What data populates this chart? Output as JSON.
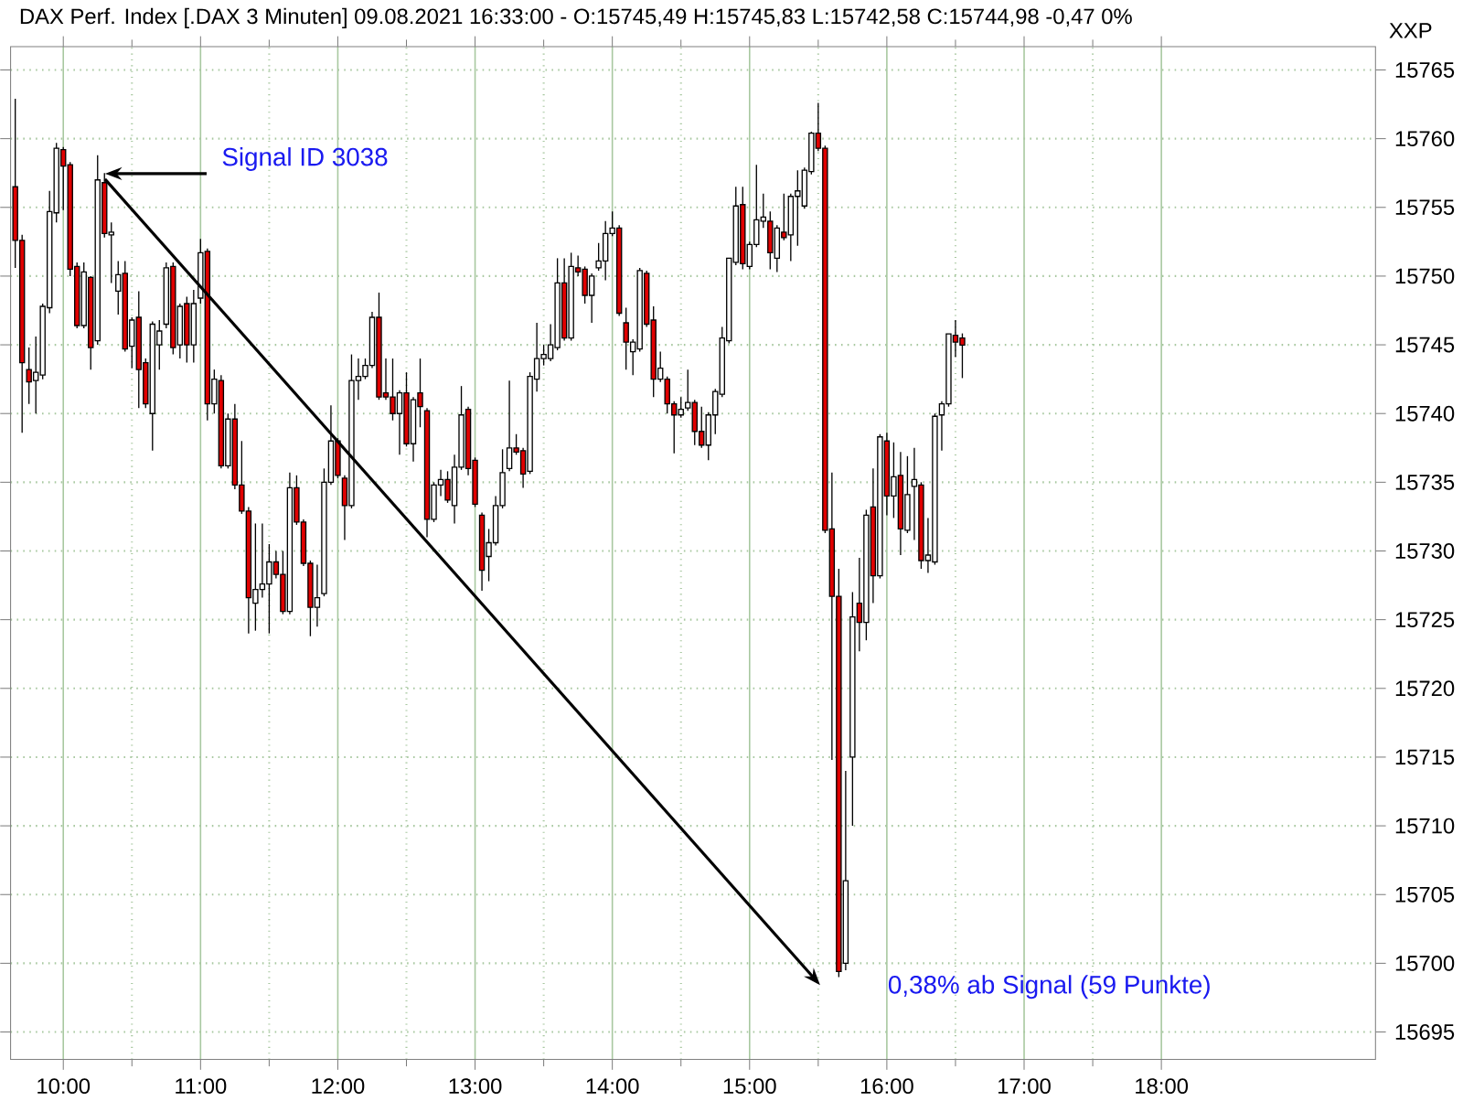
{
  "chart_data": {
    "type": "candlestick",
    "title": "DAX Perf. Index [.DAX  3 Minuten] 09.08.2021 16:33:00 - O:15745,49 H:15745,83 L:15742,58 C:15744,98 -0,47 0%",
    "ylabel": "XXP",
    "x": [
      9.65,
      9.7,
      9.75,
      9.8,
      9.85,
      9.9,
      9.95,
      10,
      10.05,
      10.1,
      10.15,
      10.2,
      10.25,
      10.3,
      10.35,
      10.4,
      10.45,
      10.5,
      10.55,
      10.6,
      10.65,
      10.7,
      10.75,
      10.8,
      10.85,
      10.9,
      10.95,
      11,
      11.05,
      11.1,
      11.15,
      11.2,
      11.25,
      11.3,
      11.35,
      11.4,
      11.45,
      11.5,
      11.55,
      11.6,
      11.65,
      11.7,
      11.75,
      11.8,
      11.85,
      11.9,
      11.95,
      12,
      12.05,
      12.1,
      12.15,
      12.2,
      12.25,
      12.3,
      12.35,
      12.4,
      12.45,
      12.5,
      12.55,
      12.6,
      12.65,
      12.7,
      12.75,
      12.8,
      12.85,
      12.9,
      12.95,
      13,
      13.05,
      13.1,
      13.15,
      13.2,
      13.25,
      13.3,
      13.35,
      13.4,
      13.45,
      13.5,
      13.55,
      13.6,
      13.65,
      13.7,
      13.75,
      13.8,
      13.85,
      13.9,
      13.95,
      14,
      14.05,
      14.1,
      14.15,
      14.2,
      14.25,
      14.3,
      14.35,
      14.4,
      14.45,
      14.5,
      14.55,
      14.6,
      14.65,
      14.7,
      14.75,
      14.8,
      14.85,
      14.9,
      14.95,
      15,
      15.05,
      15.1,
      15.15,
      15.2,
      15.25,
      15.3,
      15.35,
      15.4,
      15.45,
      15.5,
      15.55,
      15.6,
      15.65,
      15.7,
      15.75,
      15.8,
      15.85,
      15.9,
      15.95,
      16,
      16.05,
      16.1,
      16.15,
      16.2,
      16.25,
      16.3,
      16.35,
      16.4,
      16.45,
      16.5,
      16.55
    ],
    "ohlc": [
      [
        15756.5,
        15762.9,
        15750.6,
        15752.6
      ],
      [
        15752.6,
        15753,
        15738.6,
        15743.7
      ],
      [
        15743.2,
        15744.8,
        15740.7,
        15742.3
      ],
      [
        15742.4,
        15745.6,
        15740,
        15743
      ],
      [
        15742.8,
        15748,
        15742.5,
        15747.8
      ],
      [
        15747.7,
        15756.2,
        15747.3,
        15754.7
      ],
      [
        15754.6,
        15759.7,
        15753.9,
        15759.3
      ],
      [
        15759.2,
        15759.4,
        15754.8,
        15758
      ],
      [
        15758.1,
        15758.3,
        15750,
        15750.5
      ],
      [
        15750.7,
        15751,
        15746.2,
        15746.4
      ],
      [
        15746.4,
        15751,
        15746.2,
        15750.3
      ],
      [
        15749.9,
        15750,
        15743.2,
        15744.8
      ],
      [
        15745.3,
        15758.8,
        15745,
        15757
      ],
      [
        15756.8,
        15757.5,
        15752.8,
        15753.1
      ],
      [
        15753,
        15753.9,
        15749.5,
        15753.2
      ],
      [
        15748.9,
        15751.1,
        15747.2,
        15750.1
      ],
      [
        15750.2,
        15751.1,
        15744.5,
        15744.7
      ],
      [
        15744.9,
        15747,
        15743.3,
        15746.8
      ],
      [
        15747,
        15748.9,
        15740.4,
        15743.2
      ],
      [
        15743.7,
        15744,
        15740.4,
        15740.7
      ],
      [
        15740,
        15746.7,
        15737.3,
        15746.5
      ],
      [
        15745,
        15746.8,
        15743.2,
        15746
      ],
      [
        15746.5,
        15751,
        15746.2,
        15750.6
      ],
      [
        15750.7,
        15751,
        15744.3,
        15744.8
      ],
      [
        15745,
        15748,
        15744,
        15747.8
      ],
      [
        15748,
        15748.5,
        15743.7,
        15745
      ],
      [
        15745,
        15749,
        15743.7,
        15748
      ],
      [
        15748.4,
        15752.7,
        15748,
        15751.7
      ],
      [
        15751.8,
        15752,
        15739.5,
        15740.7
      ],
      [
        15740.7,
        15743.2,
        15740,
        15742.5
      ],
      [
        15742.4,
        15742.8,
        15736,
        15736.2
      ],
      [
        15736.2,
        15740,
        15736,
        15739.6
      ],
      [
        15739.6,
        15740.7,
        15734.5,
        15734.8
      ],
      [
        15734.8,
        15738,
        15732.7,
        15732.9
      ],
      [
        15732.9,
        15733.2,
        15724,
        15726.6
      ],
      [
        15726.2,
        15732,
        15724.2,
        15727.2
      ],
      [
        15727.2,
        15732,
        15726.6,
        15727.6
      ],
      [
        15727.6,
        15730.5,
        15724,
        15729.2
      ],
      [
        15729.2,
        15730,
        15728,
        15728.3
      ],
      [
        15728.3,
        15730,
        15725.4,
        15725.6
      ],
      [
        15725.6,
        15735.7,
        15725.4,
        15734.6
      ],
      [
        15734.6,
        15735.5,
        15731.9,
        15732.1
      ],
      [
        15732.1,
        15732.3,
        15728.9,
        15729.1
      ],
      [
        15729.1,
        15729.3,
        15723.8,
        15725.9
      ],
      [
        15725.9,
        15729,
        15724.5,
        15726.6
      ],
      [
        15726.9,
        15736,
        15726.7,
        15735
      ],
      [
        15735,
        15740.6,
        15734.8,
        15738
      ],
      [
        15738,
        15738.2,
        15735.3,
        15735.5
      ],
      [
        15735.3,
        15735.5,
        15730.8,
        15733.3
      ],
      [
        15733.3,
        15744.3,
        15733.1,
        15742.4
      ],
      [
        15742.4,
        15744,
        15741,
        15742.7
      ],
      [
        15742.7,
        15744,
        15742.5,
        15743.5
      ],
      [
        15743.5,
        15747.4,
        15743.3,
        15747
      ],
      [
        15747,
        15748.8,
        15741,
        15741.2
      ],
      [
        15741.5,
        15744,
        15741,
        15741.2
      ],
      [
        15741.2,
        15744,
        15739.5,
        15740
      ],
      [
        15740,
        15741.7,
        15737,
        15741.5
      ],
      [
        15741.5,
        15743,
        15737.6,
        15737.8
      ],
      [
        15737.8,
        15741.2,
        15736.5,
        15741
      ],
      [
        15741.5,
        15744,
        15739,
        15740.5
      ],
      [
        15740.2,
        15740.4,
        15731,
        15732.3
      ],
      [
        15732.3,
        15735,
        15732.1,
        15734.8
      ],
      [
        15734.8,
        15735.9,
        15734,
        15735.2
      ],
      [
        15735.2,
        15735.8,
        15733.5,
        15733.7
      ],
      [
        15733.3,
        15737,
        15732,
        15736.1
      ],
      [
        15736.1,
        15742,
        15735.9,
        15739.9
      ],
      [
        15740.3,
        15740.5,
        15735.5,
        15736
      ],
      [
        15736.6,
        15736.8,
        15733.2,
        15733.4
      ],
      [
        15732.6,
        15732.8,
        15727.1,
        15728.6
      ],
      [
        15729.6,
        15731.6,
        15727.8,
        15730.6
      ],
      [
        15730.6,
        15734,
        15730.4,
        15733.3
      ],
      [
        15733.3,
        15737.4,
        15733.1,
        15735.7
      ],
      [
        15736,
        15742.4,
        15735.8,
        15737.5
      ],
      [
        15737.5,
        15738.5,
        15737,
        15737.2
      ],
      [
        15737.3,
        15737.5,
        15734.6,
        15735.6
      ],
      [
        15735.8,
        15743,
        15735.6,
        15742.7
      ],
      [
        15742.5,
        15746.6,
        15741.6,
        15744
      ],
      [
        15744,
        15745,
        15743.5,
        15744.3
      ],
      [
        15744,
        15746.5,
        15743.8,
        15745
      ],
      [
        15744.8,
        15751.3,
        15744.6,
        15749.5
      ],
      [
        15749.5,
        15751.3,
        15745.3,
        15745.5
      ],
      [
        15745.5,
        15751.7,
        15745.3,
        15750.7
      ],
      [
        15750.6,
        15751.5,
        15750,
        15750.3
      ],
      [
        15750.5,
        15750.7,
        15748,
        15748.6
      ],
      [
        15748.6,
        15750.2,
        15746.6,
        15750
      ],
      [
        15750.6,
        15752.4,
        15750.4,
        15751.1
      ],
      [
        15751.1,
        15754,
        15749.7,
        15753.1
      ],
      [
        15753.1,
        15754.7,
        15752.9,
        15753.5
      ],
      [
        15753.5,
        15753.7,
        15747.1,
        15747.3
      ],
      [
        15746.6,
        15747.7,
        15743.2,
        15745.2
      ],
      [
        15744.5,
        15745.4,
        15742.8,
        15745.2
      ],
      [
        15744.7,
        15750.6,
        15744.5,
        15750.4
      ],
      [
        15750.2,
        15750.4,
        15746.3,
        15746.5
      ],
      [
        15746.8,
        15747.8,
        15741.2,
        15742.5
      ],
      [
        15742.5,
        15744.5,
        15742.3,
        15743.3
      ],
      [
        15742.5,
        15742.7,
        15740,
        15740.7
      ],
      [
        15740.7,
        15740.9,
        15737.1,
        15739.9
      ],
      [
        15739.9,
        15741.2,
        15739.7,
        15740.3
      ],
      [
        15740.4,
        15743.2,
        15740.2,
        15740.8
      ],
      [
        15740.8,
        15741,
        15737.7,
        15738.7
      ],
      [
        15738.7,
        15740.5,
        15737.5,
        15737.7
      ],
      [
        15737.7,
        15740.1,
        15736.6,
        15739.9
      ],
      [
        15739.9,
        15741.8,
        15738.5,
        15741.6
      ],
      [
        15741.4,
        15746.3,
        15741.2,
        15745.5
      ],
      [
        15745.3,
        15751.3,
        15745.1,
        15751.3
      ],
      [
        15751,
        15756.5,
        15750.8,
        15755.1
      ],
      [
        15755.2,
        15756.5,
        15750.5,
        15750.9
      ],
      [
        15750.7,
        15752.5,
        15750.5,
        15752.3
      ],
      [
        15752.3,
        15758.1,
        15752.1,
        15754.1
      ],
      [
        15754,
        15756,
        15753.5,
        15754.3
      ],
      [
        15754,
        15754.7,
        15750.5,
        15751.7
      ],
      [
        15751.3,
        15753.7,
        15750.3,
        15753.5
      ],
      [
        15753.2,
        15756,
        15752.6,
        15752.8
      ],
      [
        15753,
        15756,
        15751.1,
        15755.8
      ],
      [
        15755.8,
        15757.7,
        15752.2,
        15756.2
      ],
      [
        15755.1,
        15757.9,
        15754.9,
        15757.7
      ],
      [
        15757.6,
        15760.5,
        15757.4,
        15760.4
      ],
      [
        15760.4,
        15762.6,
        15759.1,
        15759.3
      ],
      [
        15759.3,
        15759.5,
        15731.3,
        15731.5
      ],
      [
        15731.6,
        15735.7,
        15714.8,
        15726.7
      ],
      [
        15726.7,
        15728.7,
        15699,
        15699.4
      ],
      [
        15700,
        15714,
        15699.5,
        15706
      ],
      [
        15715,
        15727,
        15710,
        15725.2
      ],
      [
        15726.2,
        15729.5,
        15722.7,
        15724.8
      ],
      [
        15724.8,
        15733,
        15723.5,
        15732.6
      ],
      [
        15733.2,
        15736,
        15726.2,
        15728.2
      ],
      [
        15728.2,
        15738.5,
        15728,
        15738.3
      ],
      [
        15738,
        15738.6,
        15732.6,
        15734
      ],
      [
        15734,
        15737.9,
        15732.4,
        15735.4
      ],
      [
        15735.5,
        15737.2,
        15729.7,
        15731.6
      ],
      [
        15731.5,
        15736.9,
        15731.3,
        15734.1
      ],
      [
        15734.7,
        15737.5,
        15730.8,
        15735.2
      ],
      [
        15734.8,
        15735,
        15728.7,
        15729.3
      ],
      [
        15729.3,
        15732.4,
        15728.4,
        15729.7
      ],
      [
        15729.2,
        15740,
        15729,
        15739.8
      ],
      [
        15739.9,
        15740.9,
        15737.3,
        15740.7
      ],
      [
        15740.7,
        15745.8,
        15740.5,
        15745.8
      ],
      [
        15745.7,
        15746.8,
        15744.1,
        15745.2
      ],
      [
        15745.49,
        15745.83,
        15742.58,
        15744.98
      ]
    ],
    "xlim": [
      9.616,
      19.56
    ],
    "xticks": [
      {
        "value": 10,
        "label": "10:00"
      },
      {
        "value": 11,
        "label": "11:00"
      },
      {
        "value": 12,
        "label": "12:00"
      },
      {
        "value": 13,
        "label": "13:00"
      },
      {
        "value": 14,
        "label": "14:00"
      },
      {
        "value": 15,
        "label": "15:00"
      },
      {
        "value": 16,
        "label": "16:00"
      },
      {
        "value": 17,
        "label": "17:00"
      },
      {
        "value": 18,
        "label": "18:00"
      }
    ],
    "ylim": [
      15693,
      15766.7
    ],
    "yticks": [
      15695,
      15700,
      15705,
      15710,
      15715,
      15720,
      15725,
      15730,
      15735,
      15740,
      15745,
      15750,
      15755,
      15760,
      15765
    ],
    "grid": true,
    "annotations": [
      "Signal ID 3038",
      "0,38% ab Signal (59 Punkte)"
    ]
  }
}
